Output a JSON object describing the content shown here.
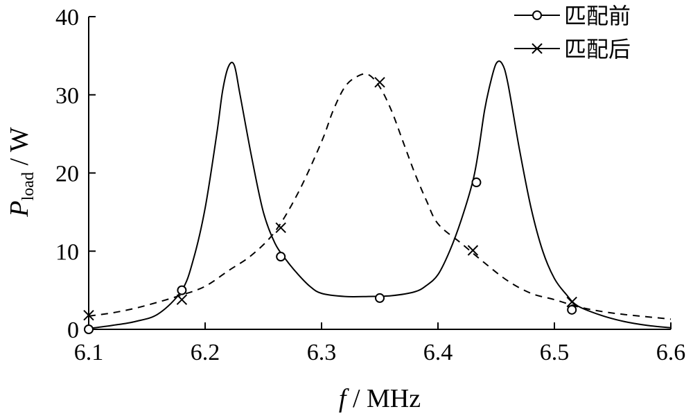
{
  "chart_data": {
    "type": "line",
    "xlabel": {
      "symbol": "f",
      "unit": " / MHz"
    },
    "ylabel": {
      "symbol": "P",
      "subscript": "load",
      "unit": " / W"
    },
    "xlim": [
      6.1,
      6.6
    ],
    "ylim": [
      0,
      40
    ],
    "xticks": [
      "6.1",
      "6.2",
      "6.3",
      "6.4",
      "6.5",
      "6.6"
    ],
    "yticks": [
      "0",
      "10",
      "20",
      "30",
      "40"
    ],
    "grid": false,
    "legend_position": "top-right",
    "series": [
      {
        "name": "匹配前",
        "marker": "circle",
        "line_style": "solid",
        "x": [
          6.1,
          6.12,
          6.14,
          6.16,
          6.18,
          6.19,
          6.2,
          6.21,
          6.215,
          6.22,
          6.225,
          6.23,
          6.24,
          6.25,
          6.26,
          6.27,
          6.28,
          6.29,
          6.3,
          6.32,
          6.34,
          6.36,
          6.38,
          6.39,
          6.4,
          6.41,
          6.42,
          6.43,
          6.435,
          6.44,
          6.445,
          6.45,
          6.455,
          6.46,
          6.47,
          6.48,
          6.49,
          6.5,
          6.51,
          6.52,
          6.54,
          6.56,
          6.58,
          6.6
        ],
        "y": [
          0.1,
          0.5,
          1.0,
          2.0,
          5.0,
          9.0,
          15.5,
          25.0,
          30.5,
          33.6,
          33.8,
          30.0,
          22.0,
          15.0,
          11.0,
          8.8,
          7.0,
          5.5,
          4.6,
          4.2,
          4.2,
          4.3,
          4.8,
          5.6,
          7.0,
          10.0,
          14.0,
          19.0,
          23.0,
          28.0,
          31.5,
          34.0,
          34.0,
          31.5,
          23.0,
          15.5,
          10.0,
          6.5,
          4.5,
          3.0,
          1.8,
          1.0,
          0.5,
          0.2
        ],
        "markers": [
          [
            6.1,
            0.0
          ],
          [
            6.18,
            5.0
          ],
          [
            6.265,
            9.3
          ],
          [
            6.35,
            4.0
          ],
          [
            6.433,
            18.8
          ],
          [
            6.515,
            2.5
          ]
        ]
      },
      {
        "name": "匹配后",
        "marker": "x",
        "line_style": "dashed",
        "x": [
          6.1,
          6.12,
          6.14,
          6.16,
          6.18,
          6.2,
          6.22,
          6.24,
          6.26,
          6.28,
          6.3,
          6.31,
          6.32,
          6.33,
          6.34,
          6.35,
          6.36,
          6.37,
          6.38,
          6.39,
          6.4,
          6.42,
          6.44,
          6.46,
          6.48,
          6.5,
          6.52,
          6.54,
          6.56,
          6.58,
          6.6
        ],
        "y": [
          1.7,
          2.1,
          2.7,
          3.5,
          4.4,
          5.5,
          7.5,
          9.5,
          12.5,
          17.5,
          24.0,
          28.0,
          31.0,
          32.3,
          32.6,
          31.0,
          28.0,
          24.0,
          20.0,
          16.5,
          13.5,
          11.0,
          8.5,
          6.2,
          4.6,
          3.8,
          2.9,
          2.3,
          1.9,
          1.6,
          1.3
        ],
        "markers": [
          [
            6.1,
            1.8
          ],
          [
            6.18,
            3.8
          ],
          [
            6.265,
            13.0
          ],
          [
            6.35,
            31.6
          ],
          [
            6.43,
            10.1
          ],
          [
            6.515,
            3.5
          ]
        ]
      }
    ]
  }
}
